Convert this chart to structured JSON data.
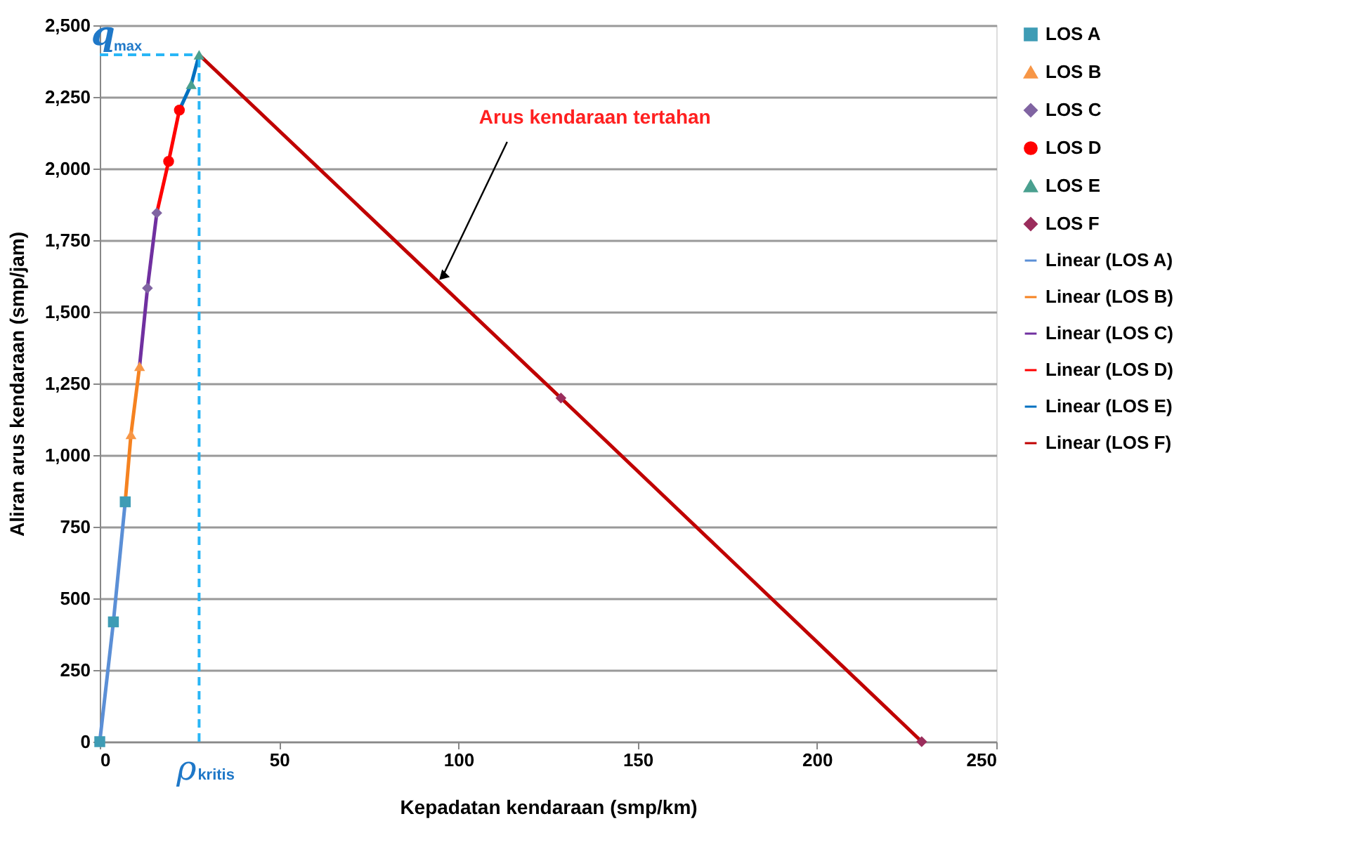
{
  "chart_data": {
    "type": "scatter",
    "xlabel": "Kepadatan kendaraan    (smp/km)",
    "ylabel": "Aliran arus kendaraan (smp/jam)",
    "xlim": [
      0,
      250
    ],
    "xticks": [
      0,
      50,
      100,
      150,
      200,
      250
    ],
    "ylim": [
      0,
      2500
    ],
    "yticks": [
      0,
      {
        "value": 250,
        "label": "250"
      },
      {
        "value": 500,
        "label": "500"
      },
      {
        "value": 750,
        "label": "750"
      },
      {
        "value": 1000,
        "label": "1,000"
      },
      {
        "value": 1250,
        "label": "1,250"
      },
      {
        "value": 1500,
        "label": "1,500"
      },
      {
        "value": 1750,
        "label": "1,750"
      },
      {
        "value": 2000,
        "label": "2,000"
      },
      {
        "value": 2250,
        "label": "2,250"
      },
      {
        "value": 2500,
        "label": "2,500"
      }
    ],
    "grid": "y",
    "legend": "right",
    "series": [
      {
        "name": "LOS A",
        "marker": "square",
        "color": "#3e9cb5",
        "x": [
          0,
          3.8,
          7.1
        ],
        "values": [
          0,
          418,
          837
        ]
      },
      {
        "name": "LOS B",
        "marker": "triangle",
        "color": "#f79646",
        "x": [
          8.7,
          11.1
        ],
        "values": [
          1072,
          1310
        ]
      },
      {
        "name": "LOS C",
        "marker": "diamond",
        "color": "#8064a2",
        "x": [
          13.3,
          15.9
        ],
        "values": [
          1583,
          1845
        ]
      },
      {
        "name": "LOS D",
        "marker": "circle",
        "color": "#ff0000",
        "x": [
          19.2,
          22.2
        ],
        "values": [
          2025,
          2204
        ]
      },
      {
        "name": "LOS E",
        "marker": "triangle",
        "color": "#4aa08f",
        "x": [
          25.5,
          27.7
        ],
        "values": [
          2294,
          2397
        ]
      },
      {
        "name": "LOS F",
        "marker": "diamond",
        "color": "#9b2d5c",
        "x": [
          128.6,
          229.2
        ],
        "values": [
          1199,
          0
        ]
      },
      {
        "name": "Linear (LOS A)",
        "type": "line",
        "marker": "none",
        "color": "#5b8fd6",
        "x": [
          0,
          3.8,
          7.1
        ],
        "values": [
          0,
          418,
          837
        ]
      },
      {
        "name": "Linear (LOS B)",
        "type": "line",
        "marker": "none",
        "color": "#f58220",
        "x": [
          7.1,
          8.7,
          11.1
        ],
        "values": [
          837,
          1072,
          1310
        ]
      },
      {
        "name": "Linear (LOS C)",
        "type": "line",
        "marker": "none",
        "color": "#7030a0",
        "x": [
          11.1,
          13.3,
          15.9
        ],
        "values": [
          1310,
          1583,
          1845
        ]
      },
      {
        "name": "Linear (LOS D)",
        "type": "line",
        "marker": "none",
        "color": "#ff0000",
        "x": [
          15.9,
          19.2,
          22.2
        ],
        "values": [
          1845,
          2025,
          2204
        ]
      },
      {
        "name": "Linear (LOS E)",
        "type": "line",
        "marker": "none",
        "color": "#0070c0",
        "x": [
          22.2,
          25.5,
          27.7
        ],
        "values": [
          2204,
          2294,
          2397
        ]
      },
      {
        "name": "Linear (LOS F)",
        "type": "line",
        "marker": "none",
        "color": "#c00000",
        "x": [
          27.7,
          128.6,
          229.2
        ],
        "values": [
          2397,
          1199,
          0
        ]
      }
    ],
    "ref_lines": [
      {
        "axis": "y",
        "value": 2397,
        "label": "q$_{max}$",
        "color": "#29b6f6",
        "line_style": "dashed"
      },
      {
        "axis": "x",
        "value": 27.7,
        "label": "ρ$_{kritis}$",
        "color": "#29b6f6",
        "line_style": "dashed"
      }
    ],
    "annotations": [
      {
        "text": "Arus kendaraan tertahan",
        "x": 95.6,
        "y": 1623
      }
    ]
  }
}
